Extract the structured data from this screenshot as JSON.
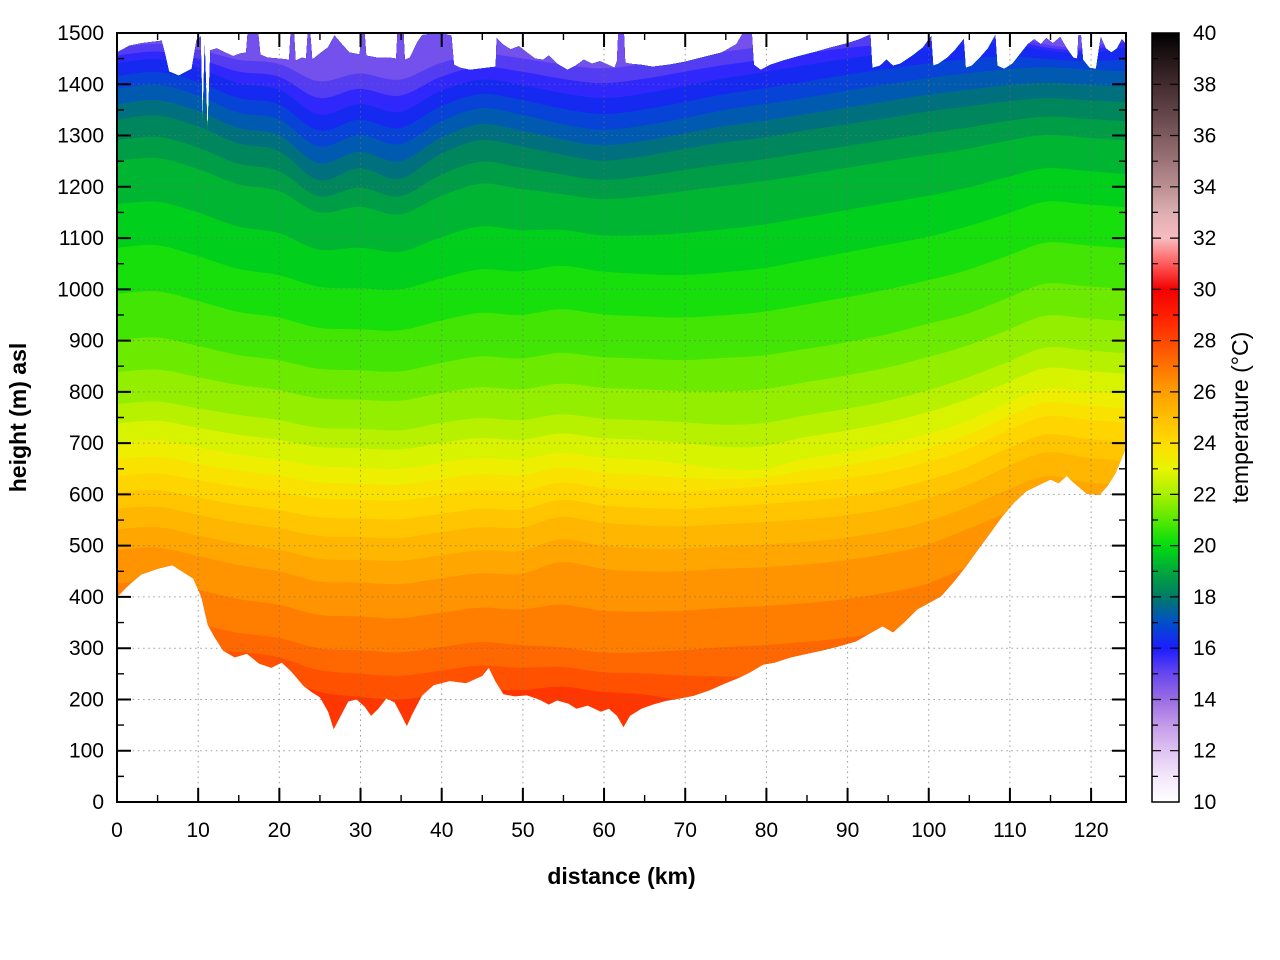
{
  "page": {
    "background": "#ffffff"
  },
  "chart_data": {
    "type": "heatmap",
    "title": "",
    "xlabel": "distance (km)",
    "ylabel": "height (m) asl",
    "colorbar_label": "temperature (°C)",
    "x_axis": {
      "range": [
        0,
        124.3
      ],
      "ticks_major": [
        0,
        10,
        20,
        30,
        40,
        50,
        60,
        70,
        80,
        90,
        100,
        110,
        120
      ],
      "ticks_minor": [
        5,
        15,
        25,
        35,
        45,
        55,
        65,
        75,
        85,
        95,
        105,
        115
      ],
      "grid": "dotted"
    },
    "y_axis": {
      "range": [
        0,
        1500
      ],
      "ticks_major": [
        0,
        100,
        200,
        300,
        400,
        500,
        600,
        700,
        800,
        900,
        1000,
        1100,
        1200,
        1300,
        1400,
        1500
      ],
      "ticks_minor": [
        50,
        150,
        250,
        350,
        450,
        550,
        650,
        750,
        850,
        950,
        1050,
        1150,
        1250,
        1350,
        1450
      ],
      "grid": "dotted"
    },
    "colorbar": {
      "range": [
        10,
        40
      ],
      "ticks_labeled": [
        10,
        12,
        14,
        16,
        18,
        20,
        22,
        24,
        26,
        28,
        30,
        32,
        34,
        36,
        38,
        40
      ],
      "tick_minor_step": 1
    },
    "palette_stops": [
      [
        10,
        "#ffffff"
      ],
      [
        11,
        "#f3e7fb"
      ],
      [
        12,
        "#dfc3f2"
      ],
      [
        13,
        "#c49ae9"
      ],
      [
        14,
        "#9a6ce4"
      ],
      [
        15,
        "#6747ee"
      ],
      [
        16,
        "#1c1cff"
      ],
      [
        17,
        "#0050c8"
      ],
      [
        18,
        "#007a66"
      ],
      [
        19,
        "#00a83c"
      ],
      [
        20,
        "#00dc10"
      ],
      [
        21,
        "#58e800"
      ],
      [
        22,
        "#a8f000"
      ],
      [
        23,
        "#e8f400"
      ],
      [
        24,
        "#ffdc00"
      ],
      [
        25,
        "#ffbe00"
      ],
      [
        26,
        "#ff9e00"
      ],
      [
        27,
        "#ff7300"
      ],
      [
        28,
        "#ff4600"
      ],
      [
        29,
        "#ff1e00"
      ],
      [
        30,
        "#f20000"
      ],
      [
        31,
        "#ff5c5c"
      ],
      [
        32,
        "#f8bcc0"
      ],
      [
        33,
        "#ddaeb1"
      ],
      [
        34,
        "#bb8f92"
      ],
      [
        35,
        "#9c7478"
      ],
      [
        36,
        "#7e5a5e"
      ],
      [
        37,
        "#5f4246"
      ],
      [
        38,
        "#422b2f"
      ],
      [
        39,
        "#231517"
      ],
      [
        40,
        "#000000"
      ]
    ],
    "surface_base_temp": 28.4,
    "band_step": 0.5,
    "terrain_profile_xh": [
      [
        0,
        400
      ],
      [
        1.5,
        424
      ],
      [
        3,
        444
      ],
      [
        5,
        455
      ],
      [
        6.8,
        462
      ],
      [
        7.8,
        452
      ],
      [
        9.4,
        436
      ],
      [
        10.4,
        400
      ],
      [
        11.2,
        345
      ],
      [
        12,
        322
      ],
      [
        13.1,
        295
      ],
      [
        14.5,
        282
      ],
      [
        16,
        289
      ],
      [
        17.5,
        270
      ],
      [
        19,
        262
      ],
      [
        20.3,
        272
      ],
      [
        21.5,
        254
      ],
      [
        23,
        226
      ],
      [
        24,
        214
      ],
      [
        25,
        204
      ],
      [
        26,
        176
      ],
      [
        26.7,
        142
      ],
      [
        27.5,
        166
      ],
      [
        28.5,
        196
      ],
      [
        29.5,
        200
      ],
      [
        30.5,
        186
      ],
      [
        31.3,
        168
      ],
      [
        32.2,
        182
      ],
      [
        33.2,
        202
      ],
      [
        34.2,
        194
      ],
      [
        35,
        170
      ],
      [
        35.7,
        148
      ],
      [
        36.4,
        172
      ],
      [
        37.6,
        208
      ],
      [
        39,
        228
      ],
      [
        41,
        236
      ],
      [
        43,
        232
      ],
      [
        45,
        246
      ],
      [
        45.8,
        262
      ],
      [
        46.6,
        236
      ],
      [
        47.6,
        210
      ],
      [
        49,
        206
      ],
      [
        50.5,
        208
      ],
      [
        52,
        200
      ],
      [
        53.2,
        190
      ],
      [
        54.2,
        198
      ],
      [
        55.6,
        192
      ],
      [
        56.6,
        182
      ],
      [
        58,
        188
      ],
      [
        59.6,
        176
      ],
      [
        60.6,
        182
      ],
      [
        61.6,
        168
      ],
      [
        62.4,
        146
      ],
      [
        63.2,
        168
      ],
      [
        64.6,
        182
      ],
      [
        66,
        190
      ],
      [
        67.6,
        197
      ],
      [
        69,
        201
      ],
      [
        71,
        207
      ],
      [
        73,
        218
      ],
      [
        75,
        232
      ],
      [
        76.6,
        242
      ],
      [
        78,
        253
      ],
      [
        79.6,
        268
      ],
      [
        81,
        272
      ],
      [
        83,
        282
      ],
      [
        85,
        289
      ],
      [
        87,
        296
      ],
      [
        89,
        304
      ],
      [
        91,
        313
      ],
      [
        93,
        331
      ],
      [
        94.3,
        343
      ],
      [
        95.6,
        331
      ],
      [
        97,
        351
      ],
      [
        98.6,
        376
      ],
      [
        100,
        388
      ],
      [
        101.5,
        401
      ],
      [
        103,
        428
      ],
      [
        104.5,
        458
      ],
      [
        106,
        491
      ],
      [
        107.5,
        523
      ],
      [
        109,
        556
      ],
      [
        110.5,
        584
      ],
      [
        112,
        606
      ],
      [
        113.5,
        618
      ],
      [
        115,
        629
      ],
      [
        116,
        622
      ],
      [
        117,
        636
      ],
      [
        118,
        621
      ],
      [
        119.5,
        601
      ],
      [
        121,
        599
      ],
      [
        122,
        616
      ],
      [
        123,
        641
      ],
      [
        124.3,
        691
      ]
    ],
    "data_top_boundary_xh": [
      [
        0,
        1462
      ],
      [
        1.5,
        1475
      ],
      [
        3,
        1480
      ],
      [
        4.5,
        1483
      ],
      [
        5.5,
        1485
      ],
      [
        5.9,
        1460
      ],
      [
        6.4,
        1425
      ],
      [
        7.6,
        1417
      ],
      [
        9.2,
        1430
      ],
      [
        9.8,
        1487
      ],
      [
        10.3,
        1493
      ],
      [
        10.55,
        1320
      ],
      [
        10.8,
        1476
      ],
      [
        11.15,
        1302
      ],
      [
        11.5,
        1466
      ],
      [
        12.3,
        1470
      ],
      [
        13.3,
        1462
      ],
      [
        14.3,
        1455
      ],
      [
        15.2,
        1460
      ],
      [
        15.9,
        1462
      ],
      [
        16.1,
        1500
      ],
      [
        17.4,
        1500
      ],
      [
        17.65,
        1458
      ],
      [
        18.5,
        1452
      ],
      [
        20,
        1450
      ],
      [
        21.2,
        1448
      ],
      [
        21.4,
        1500
      ],
      [
        21.8,
        1500
      ],
      [
        22,
        1446
      ],
      [
        22.8,
        1452
      ],
      [
        23.3,
        1450
      ],
      [
        23.5,
        1500
      ],
      [
        23.8,
        1500
      ],
      [
        24.05,
        1448
      ],
      [
        25,
        1460
      ],
      [
        26,
        1472
      ],
      [
        26.8,
        1495
      ],
      [
        27.6,
        1480
      ],
      [
        28.6,
        1462
      ],
      [
        29.9,
        1458
      ],
      [
        30.1,
        1500
      ],
      [
        30.5,
        1500
      ],
      [
        30.7,
        1456
      ],
      [
        32,
        1452
      ],
      [
        33.5,
        1452
      ],
      [
        34.4,
        1450
      ],
      [
        34.55,
        1500
      ],
      [
        35.3,
        1500
      ],
      [
        35.45,
        1448
      ],
      [
        36.1,
        1452
      ],
      [
        37,
        1482
      ],
      [
        37.6,
        1496
      ],
      [
        39,
        1499
      ],
      [
        40.3,
        1498
      ],
      [
        41.2,
        1495
      ],
      [
        41.5,
        1438
      ],
      [
        42.3,
        1432
      ],
      [
        43.5,
        1428
      ],
      [
        44.5,
        1430
      ],
      [
        45.5,
        1432
      ],
      [
        46.65,
        1434
      ],
      [
        46.78,
        1490
      ],
      [
        47.5,
        1478
      ],
      [
        48.5,
        1468
      ],
      [
        49.5,
        1474
      ],
      [
        50.5,
        1462
      ],
      [
        51.5,
        1450
      ],
      [
        52.5,
        1448
      ],
      [
        53.2,
        1456
      ],
      [
        54.2,
        1440
      ],
      [
        55.5,
        1428
      ],
      [
        56.5,
        1436
      ],
      [
        57.5,
        1448
      ],
      [
        58.5,
        1440
      ],
      [
        59.5,
        1445
      ],
      [
        60.5,
        1438
      ],
      [
        61.3,
        1432
      ],
      [
        61.6,
        1445
      ],
      [
        61.75,
        1500
      ],
      [
        62.45,
        1500
      ],
      [
        62.6,
        1442
      ],
      [
        63.2,
        1440
      ],
      [
        64.5,
        1438
      ],
      [
        66,
        1434
      ],
      [
        68,
        1438
      ],
      [
        70,
        1444
      ],
      [
        72,
        1452
      ],
      [
        74.5,
        1462
      ],
      [
        76.3,
        1478
      ],
      [
        77.1,
        1500
      ],
      [
        78.2,
        1500
      ],
      [
        78.45,
        1438
      ],
      [
        79.3,
        1428
      ],
      [
        80.5,
        1438
      ],
      [
        82,
        1446
      ],
      [
        84,
        1455
      ],
      [
        86,
        1463
      ],
      [
        88,
        1472
      ],
      [
        90,
        1480
      ],
      [
        91.5,
        1488
      ],
      [
        92.8,
        1497
      ],
      [
        93.05,
        1432
      ],
      [
        94,
        1436
      ],
      [
        94.8,
        1448
      ],
      [
        95.6,
        1436
      ],
      [
        96.5,
        1440
      ],
      [
        98,
        1456
      ],
      [
        99.3,
        1472
      ],
      [
        100.3,
        1494
      ],
      [
        100.55,
        1436
      ],
      [
        101.2,
        1440
      ],
      [
        102.3,
        1452
      ],
      [
        103.3,
        1468
      ],
      [
        104.3,
        1488
      ],
      [
        104.55,
        1432
      ],
      [
        105.3,
        1436
      ],
      [
        106.3,
        1452
      ],
      [
        107.3,
        1470
      ],
      [
        108.2,
        1496
      ],
      [
        108.45,
        1436
      ],
      [
        109.3,
        1430
      ],
      [
        110.3,
        1440
      ],
      [
        111.2,
        1458
      ],
      [
        112.2,
        1478
      ],
      [
        113,
        1488
      ],
      [
        113.8,
        1478
      ],
      [
        114.5,
        1490
      ],
      [
        115.3,
        1480
      ],
      [
        116.2,
        1492
      ],
      [
        117,
        1470
      ],
      [
        117.8,
        1452
      ],
      [
        118.3,
        1450
      ],
      [
        118.45,
        1496
      ],
      [
        118.75,
        1496
      ],
      [
        119,
        1448
      ],
      [
        119.8,
        1432
      ],
      [
        120.6,
        1430
      ],
      [
        121.2,
        1492
      ],
      [
        121.8,
        1470
      ],
      [
        122.5,
        1462
      ],
      [
        123.2,
        1470
      ],
      [
        123.8,
        1488
      ],
      [
        124.3,
        1478
      ]
    ],
    "isotherms": {
      "x_start": 0,
      "x_step": 4.972,
      "levels": [
        28,
        27,
        26,
        25,
        24,
        23,
        22,
        21,
        20,
        19,
        18,
        17,
        16,
        15
      ],
      "heights": [
        [
          150,
          160,
          235,
          255,
          245,
          215,
          205,
          200,
          210,
          220,
          218,
          225,
          215,
          210,
          198,
          188,
          182,
          176,
          172,
          172,
          178,
          192,
          210,
          225,
          212,
          200
        ],
        [
          360,
          368,
          348,
          330,
          320,
          300,
          296,
          292,
          302,
          312,
          306,
          302,
          292,
          292,
          296,
          302,
          306,
          312,
          320,
          332,
          348,
          382,
          422,
          452,
          442,
          430
        ],
        [
          492,
          496,
          480,
          462,
          450,
          430,
          428,
          425,
          436,
          446,
          445,
          468,
          455,
          450,
          450,
          455,
          458,
          463,
          471,
          483,
          500,
          530,
          562,
          588,
          576,
          570
        ],
        [
          572,
          576,
          560,
          545,
          534,
          519,
          517,
          515,
          526,
          536,
          535,
          556,
          545,
          540,
          538,
          542,
          546,
          551,
          559,
          571,
          591,
          616,
          652,
          682,
          672,
          665
        ],
        [
          636,
          641,
          628,
          615,
          605,
          592,
          590,
          588,
          598,
          608,
          606,
          623,
          613,
          608,
          605,
          610,
          616,
          623,
          631,
          643,
          661,
          686,
          722,
          752,
          746,
          740
        ],
        [
          701,
          706,
          692,
          678,
          668,
          655,
          652,
          650,
          661,
          671,
          668,
          681,
          672,
          668,
          660,
          650,
          649,
          669,
          681,
          696,
          716,
          741,
          776,
          806,
          801,
          795
        ],
        [
          776,
          781,
          768,
          755,
          745,
          730,
          728,
          725,
          739,
          749,
          745,
          756,
          748,
          745,
          741,
          736,
          739,
          753,
          766,
          781,
          801,
          826,
          856,
          886,
          881,
          875
        ],
        [
          901,
          906,
          890,
          872,
          862,
          845,
          842,
          840,
          856,
          869,
          865,
          876,
          868,
          865,
          862,
          866,
          871,
          883,
          896,
          911,
          931,
          951,
          981,
          1011,
          1006,
          1000
        ],
        [
          1081,
          1086,
          1065,
          1040,
          1028,
          1005,
          1002,
          1000,
          1021,
          1039,
          1035,
          1046,
          1035,
          1030,
          1028,
          1033,
          1041,
          1056,
          1071,
          1086,
          1101,
          1121,
          1146,
          1171,
          1166,
          1160
        ],
        [
          1251,
          1256,
          1235,
          1205,
          1192,
          1150,
          1161,
          1146,
          1181,
          1206,
          1196,
          1186,
          1176,
          1181,
          1191,
          1201,
          1211,
          1223,
          1236,
          1249,
          1261,
          1273,
          1289,
          1301,
          1296,
          1290
        ],
        [
          1331,
          1339,
          1318,
          1285,
          1270,
          1213,
          1236,
          1216,
          1263,
          1291,
          1279,
          1263,
          1251,
          1259,
          1273,
          1286,
          1296,
          1309,
          1321,
          1333,
          1346,
          1356,
          1366,
          1373,
          1369,
          1365
        ],
        [
          1391,
          1399,
          1378,
          1345,
          1332,
          1279,
          1301,
          1283,
          1326,
          1353,
          1341,
          1323,
          1311,
          1319,
          1333,
          1349,
          1361,
          1373,
          1386,
          1399,
          1411,
          1421,
          1429,
          1433,
          1429,
          1425
        ],
        [
          1441,
          1449,
          1432,
          1402,
          1390,
          1341,
          1361,
          1346,
          1386,
          1409,
          1399,
          1383,
          1373,
          1381,
          1396,
          1411,
          1423,
          1436,
          1449,
          1459,
          1469,
          1476,
          1479,
          1466,
          1461,
          1472
        ],
        [
          1471,
          1479,
          1468,
          1448,
          1440,
          1406,
          1421,
          1409,
          1441,
          1459,
          1451,
          1439,
          1431,
          1439,
          1451,
          1463,
          1473,
          1483,
          1491,
          1496,
          1499,
          1500,
          1500,
          1478,
          1472,
          1493
        ]
      ]
    }
  }
}
